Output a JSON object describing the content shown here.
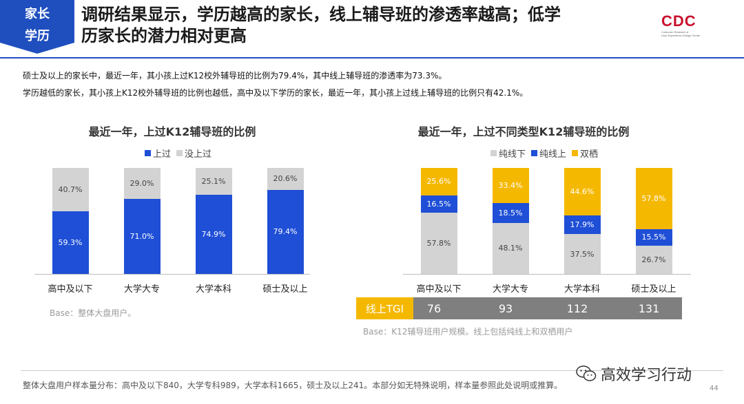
{
  "header": {
    "tag_line1": "家长",
    "tag_line2": "学历",
    "title_line1": "调研结果显示，学历越高的家长，线上辅导班的渗透率越高；低学",
    "title_line2": "历家长的潜力相对更高",
    "logo_text": "CDC",
    "logo_sub1": "Customer Research &",
    "logo_sub2": "User Experience Design Center"
  },
  "notes": {
    "line1": "硕士及以上的家长中，最近一年，其小孩上过K12校外辅导班的比例为79.4%，其中线上辅导班的渗透率为73.3%。",
    "line2": "学历越低的家长，其小孩上K12校外辅导班的比例也越低，高中及以下学历的家长，最近一年，其小孩上过线上辅导班的比例只有42.1%。"
  },
  "chart_data": [
    {
      "type": "bar",
      "stacked": true,
      "title": "最近一年，上过K12辅导班的比例",
      "categories": [
        "高中及以下",
        "大学大专",
        "大学本科",
        "硕士及以上"
      ],
      "series": [
        {
          "name": "上过",
          "color": "#1f4fd6",
          "values": [
            59.3,
            71.0,
            74.9,
            79.4
          ],
          "labels": [
            "59.3%",
            "71.0%",
            "74.9%",
            "79.4%"
          ]
        },
        {
          "name": "没上过",
          "color": "#d3d3d3",
          "values": [
            40.7,
            29.0,
            25.1,
            20.6
          ],
          "labels": [
            "40.7%",
            "29.0%",
            "25.1%",
            "20.6%"
          ]
        }
      ],
      "ylim": [
        0,
        100
      ],
      "legend": "top",
      "base_note": "Base：整体大盘用户。"
    },
    {
      "type": "bar",
      "stacked": true,
      "title": "最近一年，上过不同类型K12辅导班的比例",
      "categories": [
        "高中及以下",
        "大学大专",
        "大学本科",
        "硕士及以上"
      ],
      "series": [
        {
          "name": "纯线下",
          "color": "#d3d3d3",
          "values": [
            57.8,
            48.1,
            37.5,
            26.7
          ],
          "labels": [
            "57.8%",
            "48.1%",
            "37.5%",
            "26.7%"
          ]
        },
        {
          "name": "纯线上",
          "color": "#1f4fd6",
          "values": [
            16.5,
            18.5,
            17.9,
            15.5
          ],
          "labels": [
            "16.5%",
            "18.5%",
            "17.9%",
            "15.5%"
          ]
        },
        {
          "name": "双栖",
          "color": "#f5b800",
          "values": [
            25.6,
            33.4,
            44.6,
            57.8
          ],
          "labels": [
            "25.6%",
            "33.4%",
            "44.6%",
            "57.8%"
          ]
        }
      ],
      "ylim": [
        0,
        100
      ],
      "legend": "top",
      "tgi": {
        "label": "线上TGI",
        "values": [
          "76",
          "93",
          "112",
          "131"
        ]
      },
      "base_note": "Base：K12辅导班用户规模。线上包括纯线上和双栖用户"
    }
  ],
  "footer": {
    "text": "整体大盘用户样本量分布：高中及以下840，大学专科989，大学本科1665，硕士及以上241。本部分如无特殊说明，样本量参照此处说明或推算。",
    "watermark": "高效学习行动",
    "page": "44"
  },
  "colors": {
    "accent": "#1f4fbf",
    "brand_red": "#c8102e"
  },
  "icons": {
    "watermark": "wechat-icon"
  }
}
